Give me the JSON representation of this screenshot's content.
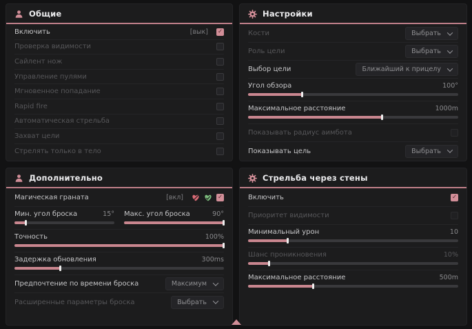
{
  "colors": {
    "accent": "#d28e98",
    "header_line": "#bf7f89",
    "fill": "#c9868f",
    "heart_red": "#db6b76",
    "heart_green": "#7dbd7d"
  },
  "general": {
    "title": "Общие",
    "rows": [
      {
        "label": "Включить",
        "hint": "[вык]",
        "checked": true
      },
      {
        "label": "Проверка видимости",
        "checked": false
      },
      {
        "label": "Сайлент нож",
        "checked": false
      },
      {
        "label": "Управление пулями",
        "checked": false
      },
      {
        "label": "Мгновенное попадание",
        "checked": false
      },
      {
        "label": "Rapid fire",
        "checked": false
      },
      {
        "label": "Автоматическая стрельба",
        "checked": false
      },
      {
        "label": "Захват цели",
        "checked": false
      },
      {
        "label": "Стрелять только в тело",
        "checked": false
      }
    ]
  },
  "settings": {
    "title": "Настройки",
    "bones": {
      "label": "Кости",
      "value": "Выбрать"
    },
    "target_role": {
      "label": "Роль цели",
      "value": "Выбрать"
    },
    "target_select": {
      "label": "Выбор цели",
      "value": "Ближайший к прицелу"
    },
    "fov": {
      "label": "Угол обзора",
      "value": "100°",
      "fill": 26
    },
    "max_distance": {
      "label": "Максимальное расстояние",
      "value": "1000m",
      "fill": 64
    },
    "show_radius": {
      "label": "Показывать радиус аимбота",
      "checked": false
    },
    "show_target": {
      "label": "Показывать цель",
      "value": "Выбрать"
    }
  },
  "additional": {
    "title": "Дополнительно",
    "magic_grenade": {
      "label": "Магическая граната",
      "hint": "[вкл]",
      "checked": true
    },
    "min_throw": {
      "label": "Мин. угол броска",
      "value": "15°",
      "fill": 12
    },
    "max_throw": {
      "label": "Макс. угол броска",
      "value": "90°",
      "fill": 100
    },
    "accuracy": {
      "label": "Точность",
      "value": "100%",
      "fill": 100
    },
    "update_delay": {
      "label": "Задержка обновления",
      "value": "300ms",
      "fill": 22
    },
    "throw_time": {
      "label": "Предпочтение по времени броска",
      "value": "Максимум"
    },
    "advanced": {
      "label": "Расширенные параметры броска",
      "value": "Выбрать"
    }
  },
  "wallbang": {
    "title": "Стрельба через стены",
    "enable": {
      "label": "Включить",
      "checked": true
    },
    "visibility_priority": {
      "label": "Приоритет видимости",
      "checked": false
    },
    "min_damage": {
      "label": "Минимальный урон",
      "value": "10",
      "fill": 19
    },
    "penetration_chance": {
      "label": "Шанс проникновения",
      "value": "10%",
      "fill": 10
    },
    "max_distance": {
      "label": "Максимальное расстояние",
      "value": "500m",
      "fill": 31
    }
  }
}
